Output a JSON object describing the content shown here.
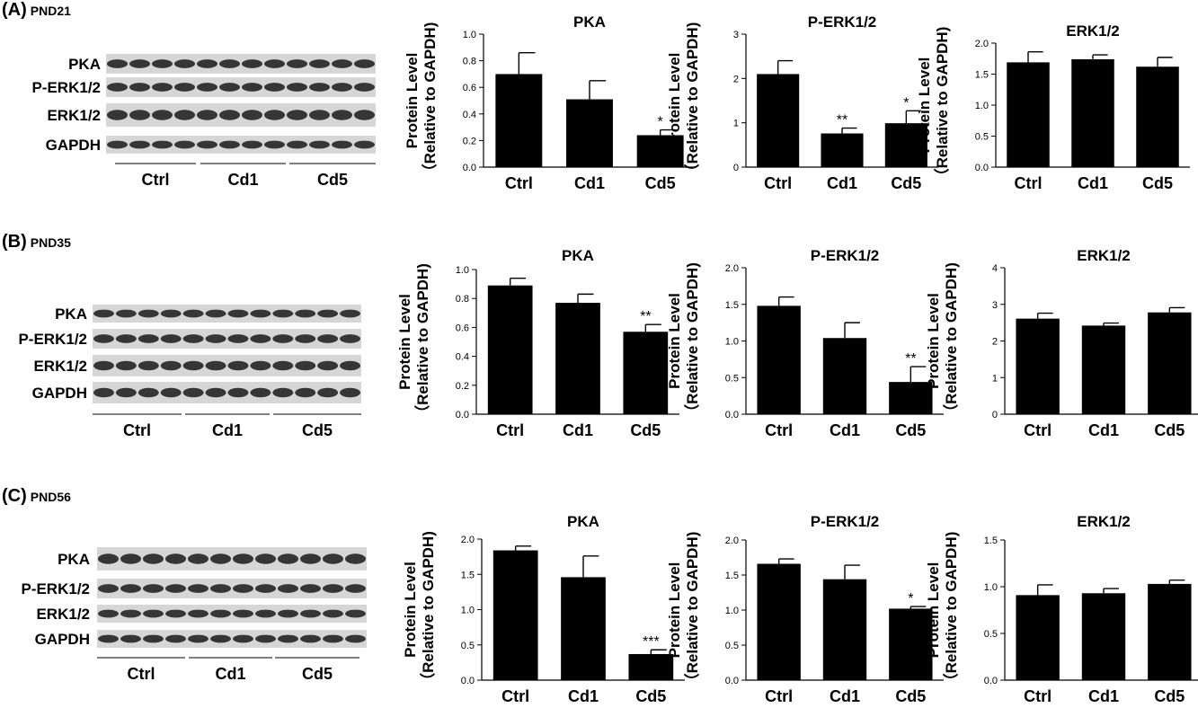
{
  "panels": [
    {
      "id": "A",
      "label": "(A)",
      "pnd": "PND21",
      "blot": {
        "bands": [
          "PKA",
          "P-ERK1/2",
          "ERK1/2",
          "GAPDH"
        ],
        "groups": [
          "Ctrl",
          "Cd1",
          "Cd5"
        ]
      }
    },
    {
      "id": "B",
      "label": "(B)",
      "pnd": "PND35",
      "blot": {
        "bands": [
          "PKA",
          "P-ERK1/2",
          "ERK1/2",
          "GAPDH"
        ],
        "groups": [
          "Ctrl",
          "Cd1",
          "Cd5"
        ]
      }
    },
    {
      "id": "C",
      "label": "(C)",
      "pnd": "PND56",
      "blot": {
        "bands": [
          "PKA",
          "P-ERK1/2",
          "ERK1/2",
          "GAPDH"
        ],
        "groups": [
          "Ctrl",
          "Cd1",
          "Cd5"
        ]
      }
    }
  ],
  "chart_data": [
    {
      "panel": "A",
      "type": "bar",
      "title": "PKA",
      "ylabel": [
        "Protein Level",
        "（Relative to GAPDH)"
      ],
      "categories": [
        "Ctrl",
        "Cd1",
        "Cd5"
      ],
      "values": [
        0.7,
        0.51,
        0.24
      ],
      "errors": [
        0.16,
        0.14,
        0.04
      ],
      "significance": [
        "",
        "",
        "*"
      ],
      "ylim": [
        0,
        1.0
      ],
      "yticks": [
        "0.0",
        "0.2",
        "0.4",
        "0.6",
        "0.8",
        "1.0"
      ],
      "grid": false,
      "color": "#000000"
    },
    {
      "panel": "A",
      "type": "bar",
      "title": "P-ERK1/2",
      "ylabel": [
        "Protein Level",
        "（Relative to GAPDH)"
      ],
      "categories": [
        "Ctrl",
        "Cd1",
        "Cd5"
      ],
      "values": [
        2.1,
        0.76,
        0.99
      ],
      "errors": [
        0.3,
        0.12,
        0.28
      ],
      "significance": [
        "",
        "**",
        "*"
      ],
      "ylim": [
        0,
        3
      ],
      "yticks": [
        "0",
        "1",
        "2",
        "3"
      ],
      "grid": false,
      "color": "#000000"
    },
    {
      "panel": "A",
      "type": "bar",
      "title": "ERK1/2",
      "ylabel": [
        "Protein Level",
        "（Relative to GAPDH)"
      ],
      "categories": [
        "Ctrl",
        "Cd1",
        "Cd5"
      ],
      "values": [
        1.69,
        1.74,
        1.62
      ],
      "errors": [
        0.17,
        0.07,
        0.15
      ],
      "significance": [
        "",
        "",
        ""
      ],
      "ylim": [
        0,
        2.0
      ],
      "yticks": [
        "0.0",
        "0.5",
        "1.0",
        "1.5",
        "2.0"
      ],
      "grid": false,
      "color": "#000000"
    },
    {
      "panel": "B",
      "type": "bar",
      "title": "PKA",
      "ylabel": [
        "Protein Level",
        "（Relative to GAPDH)"
      ],
      "categories": [
        "Ctrl",
        "Cd1",
        "Cd5"
      ],
      "values": [
        0.89,
        0.77,
        0.57
      ],
      "errors": [
        0.05,
        0.06,
        0.05
      ],
      "significance": [
        "",
        "",
        "**"
      ],
      "ylim": [
        0,
        1.0
      ],
      "yticks": [
        "0.0",
        "0.2",
        "0.4",
        "0.6",
        "0.8",
        "1.0"
      ],
      "grid": false,
      "color": "#000000"
    },
    {
      "panel": "B",
      "type": "bar",
      "title": "P-ERK1/2",
      "ylabel": [
        "Protein Level",
        "（Relative to GAPDH)"
      ],
      "categories": [
        "Ctrl",
        "Cd1",
        "Cd5"
      ],
      "values": [
        1.48,
        1.04,
        0.44
      ],
      "errors": [
        0.12,
        0.21,
        0.21
      ],
      "significance": [
        "",
        "",
        "**"
      ],
      "ylim": [
        0,
        2.0
      ],
      "yticks": [
        "0.0",
        "0.5",
        "1.0",
        "1.5",
        "2.0"
      ],
      "grid": false,
      "color": "#000000"
    },
    {
      "panel": "B",
      "type": "bar",
      "title": "ERK1/2",
      "ylabel": [
        "Protein Level",
        "（Relative to GAPDH)"
      ],
      "categories": [
        "Ctrl",
        "Cd1",
        "Cd5"
      ],
      "values": [
        2.61,
        2.42,
        2.78
      ],
      "errors": [
        0.15,
        0.07,
        0.13
      ],
      "significance": [
        "",
        "",
        ""
      ],
      "ylim": [
        0,
        4
      ],
      "yticks": [
        "0",
        "1",
        "2",
        "3",
        "4"
      ],
      "grid": false,
      "color": "#000000"
    },
    {
      "panel": "C",
      "type": "bar",
      "title": "PKA",
      "ylabel": [
        "Protein Level",
        "（Relative to GAPDH)"
      ],
      "categories": [
        "Ctrl",
        "Cd1",
        "Cd5"
      ],
      "values": [
        1.84,
        1.46,
        0.37
      ],
      "errors": [
        0.06,
        0.3,
        0.06
      ],
      "significance": [
        "",
        "",
        "***"
      ],
      "ylim": [
        0,
        2.0
      ],
      "yticks": [
        "0.0",
        "0.5",
        "1.0",
        "1.5",
        "2.0"
      ],
      "grid": false,
      "color": "#000000"
    },
    {
      "panel": "C",
      "type": "bar",
      "title": "P-ERK1/2",
      "ylabel": [
        "Protein Level",
        "（Relative to GAPDH)"
      ],
      "categories": [
        "Ctrl",
        "Cd1",
        "Cd5"
      ],
      "values": [
        1.66,
        1.44,
        1.02
      ],
      "errors": [
        0.07,
        0.2,
        0.03
      ],
      "significance": [
        "",
        "",
        "*"
      ],
      "ylim": [
        0,
        2.0
      ],
      "yticks": [
        "0.0",
        "0.5",
        "1.0",
        "1.5",
        "2.0"
      ],
      "grid": false,
      "color": "#000000"
    },
    {
      "panel": "C",
      "type": "bar",
      "title": "ERK1/2",
      "ylabel": [
        "Protein Level",
        "（Relative to GAPDH)"
      ],
      "categories": [
        "Ctrl",
        "Cd1",
        "Cd5"
      ],
      "values": [
        0.91,
        0.93,
        1.03
      ],
      "errors": [
        0.11,
        0.05,
        0.04
      ],
      "significance": [
        "",
        "",
        ""
      ],
      "ylim": [
        0,
        1.5
      ],
      "yticks": [
        "0.0",
        "0.5",
        "1.0",
        "1.5"
      ],
      "grid": false,
      "color": "#000000"
    }
  ]
}
